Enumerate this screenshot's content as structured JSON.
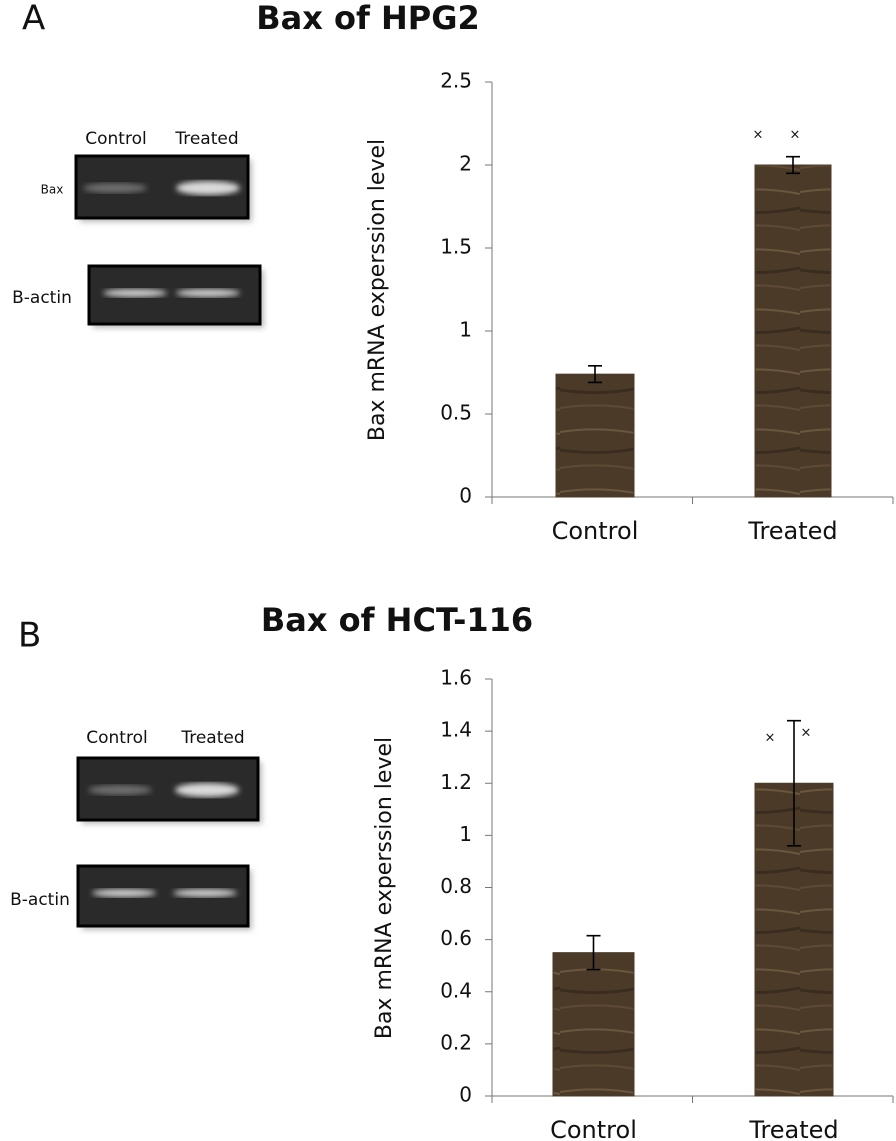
{
  "chart_data": [
    {
      "type": "bar",
      "panel": "A",
      "title": "Bax of HPG2",
      "ylabel": "Bax  mRNA  experssion level",
      "categories": [
        "Control",
        "Treated"
      ],
      "values": [
        0.74,
        2.0
      ],
      "errors": [
        0.05,
        0.05
      ],
      "color": "#4b3a28",
      "ylim": [
        0,
        2.5
      ],
      "yticks": [
        0,
        0.5,
        1,
        1.5,
        2,
        2.5
      ],
      "annotations": [
        "×",
        "×"
      ],
      "gel": {
        "lanes": [
          "Control",
          "Treated"
        ],
        "bands": [
          "Bax",
          "B-actin"
        ]
      }
    },
    {
      "type": "bar",
      "panel": "B",
      "title": "Bax of HCT-116",
      "ylabel": "Bax mRNA experssion level",
      "categories": [
        "Control",
        "Treated"
      ],
      "values": [
        0.55,
        1.2
      ],
      "errors": [
        0.065,
        0.24
      ],
      "color": "#4b3a28",
      "ylim": [
        0,
        1.6
      ],
      "yticks": [
        0,
        0.2,
        0.4,
        0.6,
        0.8,
        1,
        1.2,
        1.4,
        1.6
      ],
      "annotations": [
        "×",
        "×"
      ],
      "gel": {
        "lanes": [
          "Control",
          "Treated"
        ],
        "bands": [
          "B-actin"
        ]
      }
    }
  ]
}
